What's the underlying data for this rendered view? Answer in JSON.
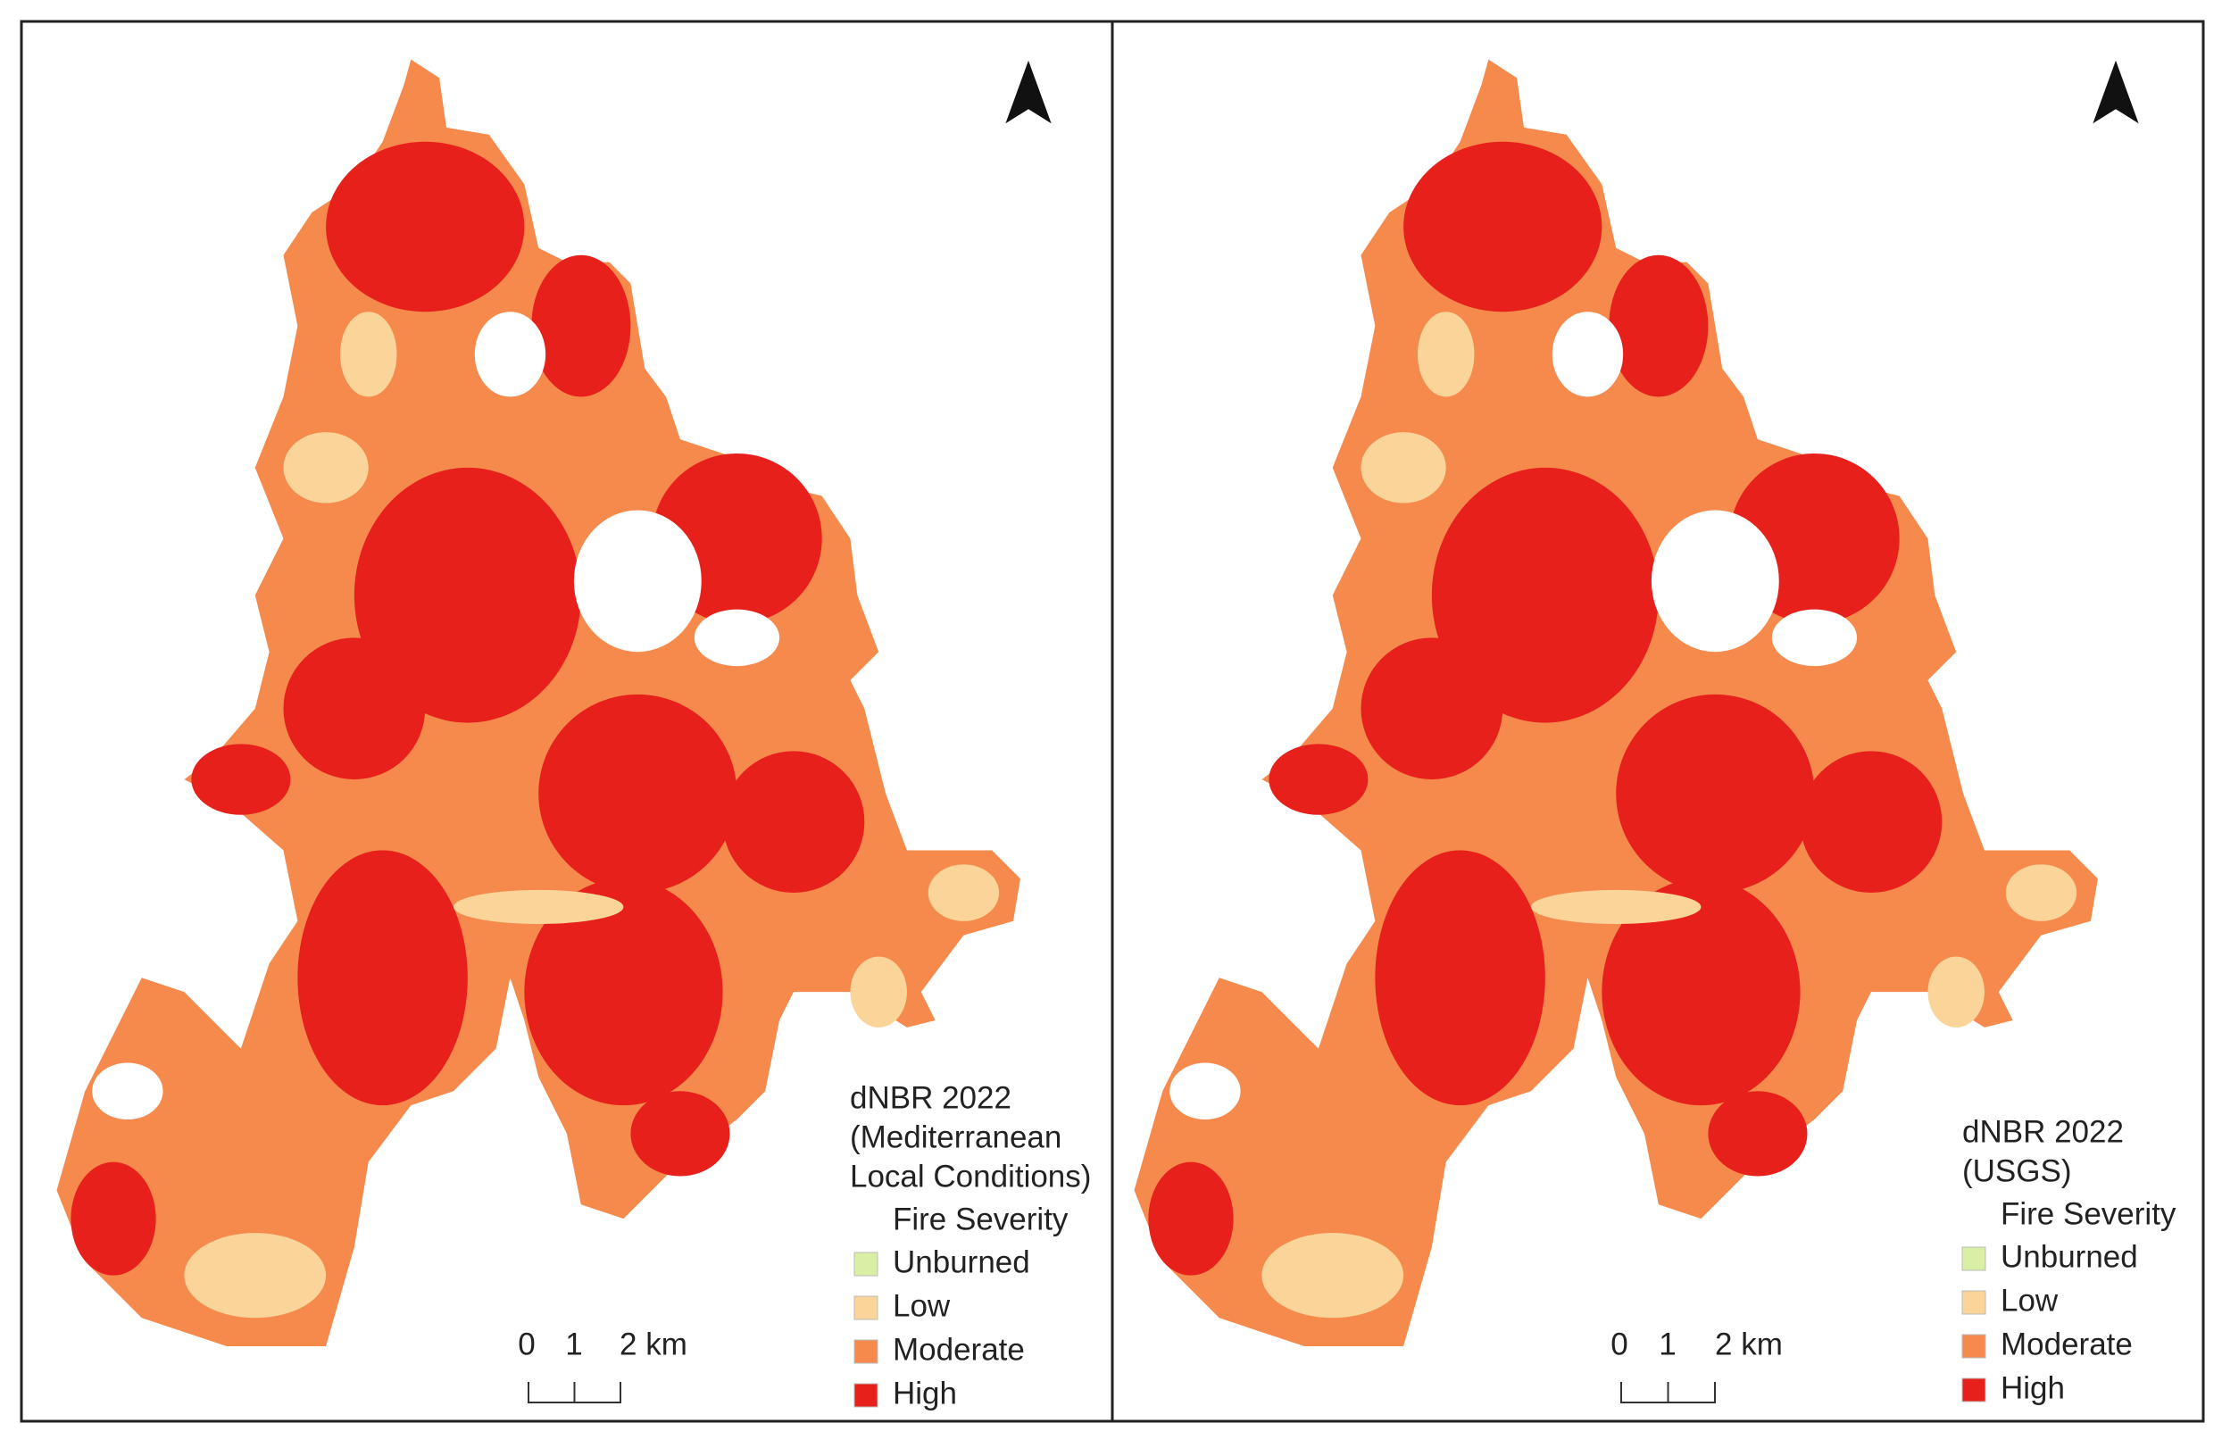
{
  "panels": [
    {
      "legend": {
        "title": "dNBR 2022",
        "subtitle": [
          "(Mediterranean",
          "Local Conditions)"
        ],
        "heading": "Fire Severity",
        "items": [
          {
            "label": "Unburned",
            "color": "#d9efa6"
          },
          {
            "label": "Low",
            "color": "#fbd49a"
          },
          {
            "label": "Moderate",
            "color": "#f58a4c"
          },
          {
            "label": "High",
            "color": "#e8201b"
          }
        ]
      },
      "scale_bar": [
        "0",
        "1",
        "2 km"
      ]
    },
    {
      "legend": {
        "title": "dNBR 2022",
        "subtitle": [
          "(USGS)"
        ],
        "heading": "Fire Severity",
        "items": [
          {
            "label": "Unburned",
            "color": "#d9efa6"
          },
          {
            "label": "Low",
            "color": "#fbd49a"
          },
          {
            "label": "Moderate",
            "color": "#f58a4c"
          },
          {
            "label": "High",
            "color": "#e8201b"
          }
        ]
      },
      "scale_bar": [
        "0",
        "1",
        "2 km"
      ]
    }
  ]
}
